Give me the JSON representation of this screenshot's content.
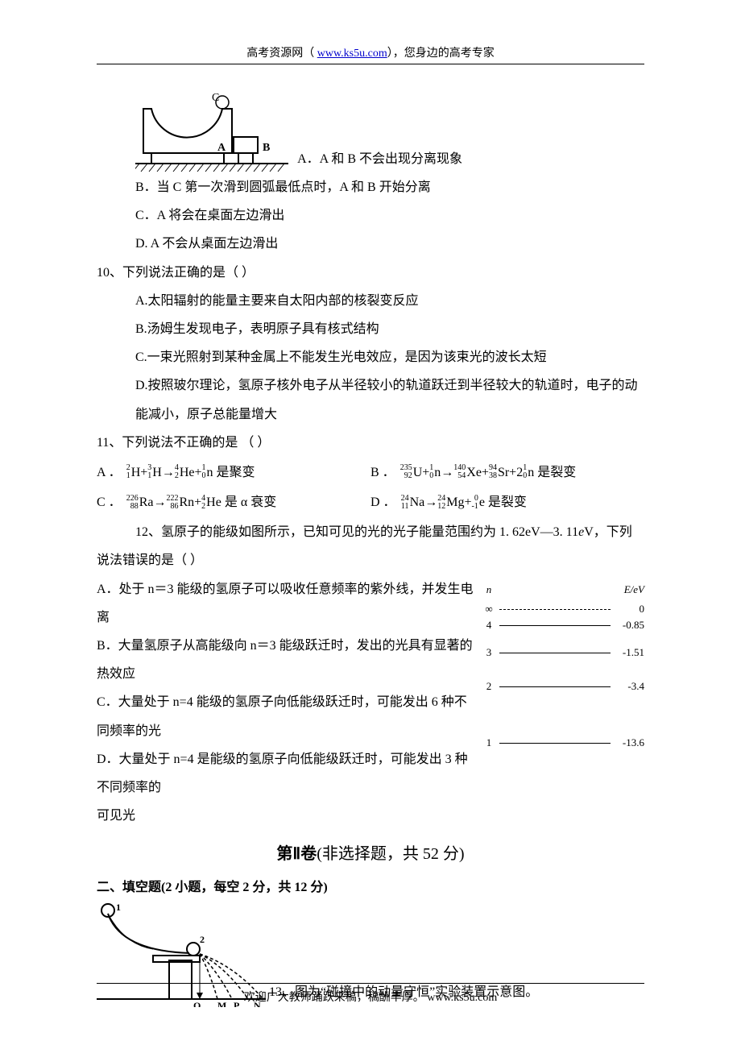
{
  "header": {
    "prefix": "高考资源网（ ",
    "link": "www.ks5u.com",
    "suffix": "），您身边的高考专家"
  },
  "q9": {
    "A": "A．A 和 B 不会出现分离现象",
    "B": "B．当 C 第一次滑到圆弧最低点时，A 和 B 开始分离",
    "C": "C．A 将会在桌面左边滑出",
    "D": "D. A 不会从桌面左边滑出"
  },
  "q10": {
    "stem": "10、下列说法正确的是（  ）",
    "A": "A.太阳辐射的能量主要来自太阳内部的核裂变反应",
    "B": "B.汤姆生发现电子，表明原子具有核式结构",
    "C": "C.一束光照射到某种金属上不能发生光电效应，是因为该束光的波长太短",
    "D": "D.按照玻尔理论，氢原子核外电子从半径较小的轨道跃迁到半径较大的轨道时，电子的动能减小，原子总能量增大"
  },
  "q11": {
    "stem": "11、下列说法不正确的是   （    ）",
    "A_tail": " 是聚变",
    "B_tail": " 是裂变",
    "C_tail": " 是 α 衰变",
    "D_tail": " 是裂变"
  },
  "q12": {
    "stem_indent": "12、氢原子的能级如图所示，已知可见的光的光子能量范围约为 1. 62eV—3. 11",
    "stem_tail": "V，下列说法错误的是（  ）",
    "A": "A．处于 n＝3 能级的氢原子可以吸收任意频率的紫外线，并发生电离",
    "B": "B．大量氢原子从高能级向 n＝3 能级跃迁时，发出的光具有显著的热效应",
    "C": "C．大量处于 n=4 能级的氢原子向低能级跃迁时，可能发出 6 种不同频率的光",
    "D1": "D．大量处于 n=4 是能级的氢原子向低能级跃迁时，可能发出 3 种不同频率的",
    "D2": "可见光"
  },
  "energy": {
    "head_n": "n",
    "head_e": "E/eV",
    "rows": [
      {
        "n": "∞",
        "e": "0",
        "dash": true,
        "gap": 0
      },
      {
        "n": "4",
        "e": "-0.85",
        "dash": false,
        "gap": 0
      },
      {
        "n": "3",
        "e": "-1.51",
        "dash": false,
        "gap": 14
      },
      {
        "n": "2",
        "e": "-3.4",
        "dash": false,
        "gap": 22
      },
      {
        "n": "1",
        "e": "-13.6",
        "dash": false,
        "gap": 50
      }
    ]
  },
  "section2": {
    "title_big": "第Ⅱ卷",
    "title_rest": "(非选择题，共 52 分)",
    "fill_title": "二、填空题(2 小题，每空 2 分，共 12 分)"
  },
  "q13": {
    "text": "13、图为“碰撞中的动量守恒”实验装置示意图。"
  },
  "footer": {
    "text": "欢迎广大教师踊跃来稿，稿酬丰厚。  www.ks5u.com"
  },
  "colors": {
    "text": "#000000",
    "link": "#0000cc",
    "bg": "#ffffff"
  }
}
